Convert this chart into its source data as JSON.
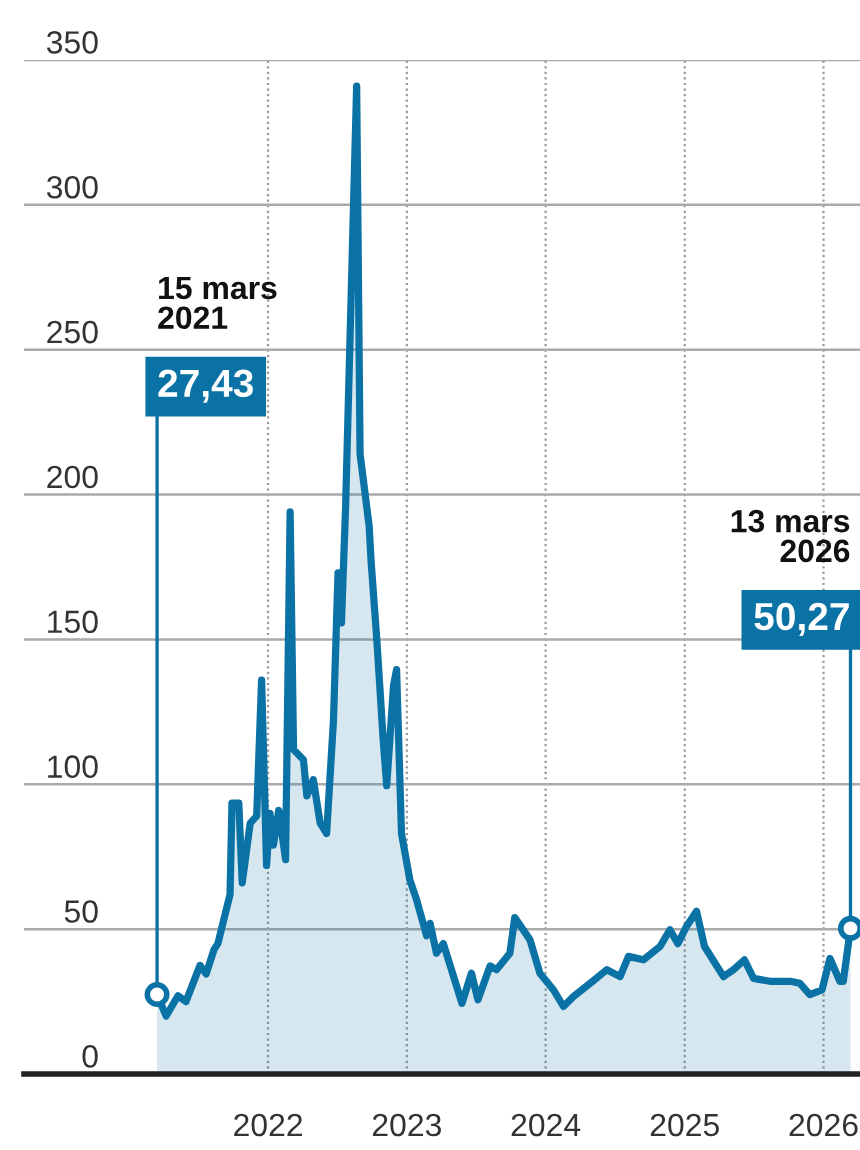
{
  "chart_data": {
    "type": "area",
    "xlim": [
      "2020-03-30",
      "2026-04-07"
    ],
    "ylim": [
      0,
      350
    ],
    "yticks": [
      0,
      50,
      100,
      150,
      200,
      250,
      300,
      350
    ],
    "xticks": [
      {
        "value": "2022-01-01",
        "label": "2022"
      },
      {
        "value": "2023-01-01",
        "label": "2023"
      },
      {
        "value": "2024-01-01",
        "label": "2024"
      },
      {
        "value": "2025-01-01",
        "label": "2025"
      },
      {
        "value": "2026-01-01",
        "label": "2026"
      }
    ],
    "grid": true,
    "x": [
      "2021-03-15",
      "2021-04-08",
      "2021-05-09",
      "2021-05-30",
      "2021-07-06",
      "2021-07-22",
      "2021-08-12",
      "2021-08-22",
      "2021-09-23",
      "2021-09-28",
      "2021-10-16",
      "2021-10-25",
      "2021-11-15",
      "2021-12-02",
      "2021-12-15",
      "2021-12-28",
      "2022-01-06",
      "2022-01-15",
      "2022-01-29",
      "2022-02-16",
      "2022-02-28",
      "2022-03-09",
      "2022-04-04",
      "2022-04-13",
      "2022-04-30",
      "2022-05-18",
      "2022-06-04",
      "2022-06-22",
      "2022-07-04",
      "2022-07-13",
      "2022-07-24",
      "2022-08-22",
      "2022-08-31",
      "2022-09-24",
      "2022-09-29",
      "2022-10-14",
      "2022-10-31",
      "2022-11-09",
      "2022-11-27",
      "2022-12-05",
      "2022-12-18",
      "2023-01-09",
      "2023-01-27",
      "2023-02-22",
      "2023-03-03",
      "2023-03-20",
      "2023-04-07",
      "2023-05-26",
      "2023-06-20",
      "2023-07-07",
      "2023-08-08",
      "2023-08-25",
      "2023-09-29",
      "2023-10-12",
      "2023-11-21",
      "2023-12-17",
      "2024-01-22",
      "2024-02-17",
      "2024-03-14",
      "2024-04-27",
      "2024-06-10",
      "2024-07-15",
      "2024-08-06",
      "2024-09-14",
      "2024-10-28",
      "2024-11-23",
      "2024-12-14",
      "2025-01-06",
      "2025-02-01",
      "2025-02-22",
      "2025-04-13",
      "2025-05-09",
      "2025-06-07",
      "2025-07-01",
      "2025-08-13",
      "2025-10-05",
      "2025-10-31",
      "2025-11-26",
      "2025-12-28",
      "2026-01-18",
      "2026-02-13",
      "2026-02-22",
      "2026-03-13"
    ],
    "series": [
      {
        "color": "#0b72a6",
        "values": [
          27.43,
          20,
          27,
          25,
          37.5,
          34.5,
          43,
          45,
          62,
          93.5,
          93.5,
          66,
          86.6,
          89,
          136,
          72,
          90,
          79,
          91,
          74,
          194,
          112,
          108.5,
          96,
          101.6,
          86.6,
          83,
          122,
          173,
          155.7,
          196,
          341,
          214,
          189,
          177,
          150,
          115,
          99.5,
          134,
          139.6,
          83,
          67,
          60,
          47.7,
          52,
          41.7,
          45,
          24.4,
          34.8,
          25.6,
          37.3,
          36,
          41.7,
          54,
          46.3,
          34.8,
          29,
          23.3,
          26.7,
          31.3,
          36,
          33.6,
          40.6,
          39.4,
          44,
          49.8,
          45,
          51,
          56.2,
          44,
          33.6,
          36,
          39.4,
          33,
          32,
          32,
          31.3,
          27.4,
          29,
          39.9,
          32,
          32,
          50.27
        ]
      }
    ],
    "annotations": [
      "15 mars\n2021",
      {
        "text": "27,43",
        "x": "2021-03-15",
        "y": 27.43
      },
      "13 mars\n2026",
      {
        "text": "50,27",
        "x": "2026-03-13",
        "y": 50.27
      }
    ]
  }
}
